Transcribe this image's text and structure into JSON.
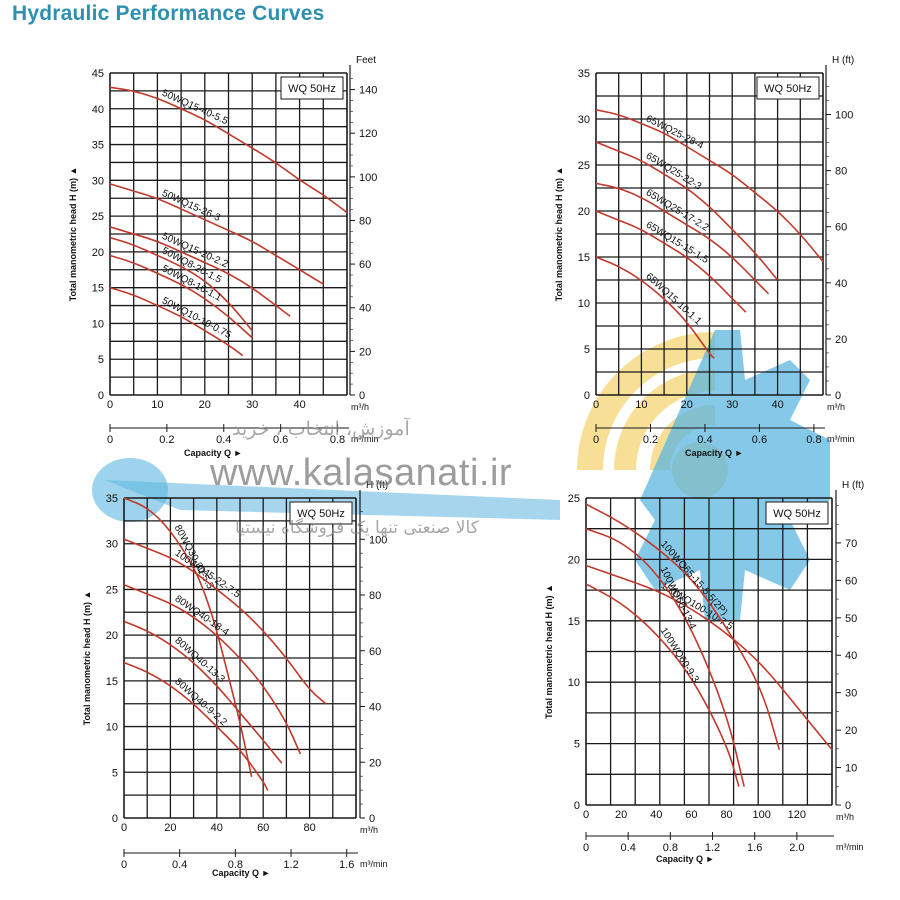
{
  "page_title": "Hydraulic Performance Curves",
  "watermark": {
    "line1": "آموزش، انتخاب ، خرید",
    "url": "www.kalasanati.ir",
    "line2": "کالا صنعتی تنها یک فروشگاه نیستیا",
    "colors": {
      "blue": "#5cb5e0",
      "yellow": "#f5d77a"
    }
  },
  "colors": {
    "curve": "#c0392b",
    "grid": "#1a1a1a",
    "title": "#2f8fb0"
  },
  "chart_data": [
    {
      "type": "line",
      "legend_box": "WQ 50Hz",
      "ylabel": "Total manometric head H (m)",
      "xlabel": "Capacity Q",
      "x_unit": "m³/h",
      "x2_unit": "m³/min",
      "y2_unit": "Feet",
      "xlim": [
        0,
        50
      ],
      "ylim": [
        0,
        45
      ],
      "x_ticks": [
        "0",
        "10",
        "20",
        "30",
        "40"
      ],
      "x_tick_values": [
        0,
        10,
        20,
        30,
        40
      ],
      "x2_ticks": [
        "0",
        "0.2",
        "0.4",
        "0.6",
        "0.8"
      ],
      "x2_tick_values": [
        0,
        0.2,
        0.4,
        0.6,
        0.8
      ],
      "y_ticks": [
        "0",
        "5",
        "10",
        "15",
        "20",
        "25",
        "30",
        "35",
        "40",
        "45"
      ],
      "y_tick_values": [
        0,
        5,
        10,
        15,
        20,
        25,
        30,
        35,
        40,
        45
      ],
      "y2_ticks": [
        "0",
        "20",
        "40",
        "60",
        "80",
        "100",
        "120",
        "140"
      ],
      "y2_tick_values": [
        0,
        20,
        40,
        60,
        80,
        100,
        120,
        140
      ],
      "series": [
        {
          "name": "50WQ15-40-5.5",
          "x": [
            0,
            5,
            10,
            15,
            20,
            25,
            30,
            35,
            40,
            45,
            50
          ],
          "y": [
            43,
            42.5,
            41.5,
            40,
            38.5,
            36.5,
            34.5,
            32.5,
            30,
            28,
            25.5
          ]
        },
        {
          "name": "50WQ15-26-3",
          "x": [
            0,
            5,
            10,
            15,
            20,
            25,
            30,
            35,
            40,
            45
          ],
          "y": [
            29.5,
            28.5,
            27.5,
            26,
            24.5,
            23,
            21.5,
            19.5,
            17.5,
            15.5
          ]
        },
        {
          "name": "50WQ15-20-2.2",
          "x": [
            0,
            5,
            10,
            15,
            20,
            25,
            30,
            35,
            38
          ],
          "y": [
            23.5,
            22.5,
            21.5,
            20,
            18.5,
            17,
            15,
            12.5,
            11
          ]
        },
        {
          "name": "50WQ8-20-1.5",
          "x": [
            0,
            5,
            10,
            15,
            20,
            25,
            30
          ],
          "y": [
            22,
            21,
            19.5,
            18,
            16,
            13,
            9
          ]
        },
        {
          "name": "50WQ8-16-1.1",
          "x": [
            0,
            5,
            10,
            15,
            20,
            25,
            30
          ],
          "y": [
            19.5,
            18.5,
            17,
            15.5,
            13.5,
            11,
            8
          ]
        },
        {
          "name": "50WQ10-10-0.75",
          "x": [
            0,
            5,
            10,
            15,
            20,
            25,
            28
          ],
          "y": [
            15,
            14,
            12.5,
            11,
            9,
            7,
            5.5
          ]
        }
      ]
    },
    {
      "type": "line",
      "legend_box": "WQ 50Hz",
      "ylabel": "Total manometric head H (m)",
      "xlabel": "Capacity Q",
      "x_unit": "m³/h",
      "x2_unit": "m³/min",
      "y2_unit": "H (ft)",
      "xlim": [
        0,
        50
      ],
      "ylim": [
        0,
        35
      ],
      "x_ticks": [
        "0",
        "10",
        "20",
        "30",
        "40"
      ],
      "x_tick_values": [
        0,
        10,
        20,
        30,
        40
      ],
      "x2_ticks": [
        "0",
        "0.2",
        "0.4",
        "0.6",
        "0.8"
      ],
      "x2_tick_values": [
        0,
        0.2,
        0.4,
        0.6,
        0.8
      ],
      "y_ticks": [
        "0",
        "5",
        "10",
        "15",
        "20",
        "25",
        "30",
        "35"
      ],
      "y_tick_values": [
        0,
        5,
        10,
        15,
        20,
        25,
        30,
        35
      ],
      "y2_ticks": [
        "0",
        "20",
        "40",
        "60",
        "80",
        "100"
      ],
      "y2_tick_values": [
        0,
        20,
        40,
        60,
        80,
        100
      ],
      "series": [
        {
          "name": "65WQ25-28-4",
          "x": [
            0,
            5,
            10,
            15,
            20,
            25,
            30,
            35,
            40,
            45,
            50
          ],
          "y": [
            31,
            30.5,
            29.5,
            28.5,
            27,
            25.5,
            24,
            22,
            20,
            17.5,
            14.5
          ]
        },
        {
          "name": "65WQ25-22-3",
          "x": [
            0,
            5,
            10,
            15,
            20,
            25,
            30,
            35,
            40
          ],
          "y": [
            27.5,
            26.5,
            25.5,
            24,
            22.5,
            20.5,
            18,
            15.5,
            12.5
          ]
        },
        {
          "name": "65WQ25-17-2.2",
          "x": [
            0,
            5,
            10,
            15,
            20,
            25,
            30,
            35,
            38
          ],
          "y": [
            23,
            22.5,
            21.5,
            20,
            18.5,
            17,
            15,
            12.5,
            11
          ]
        },
        {
          "name": "65WQ15-15-1.5",
          "x": [
            0,
            5,
            10,
            15,
            20,
            25,
            30,
            33
          ],
          "y": [
            20,
            19,
            18,
            16.5,
            15,
            13,
            10.5,
            9
          ]
        },
        {
          "name": "65WQ15-10-1.1",
          "x": [
            0,
            5,
            10,
            15,
            20,
            25,
            26
          ],
          "y": [
            15,
            14,
            12.5,
            10.5,
            8,
            4.5,
            4
          ]
        }
      ]
    },
    {
      "type": "line",
      "legend_box": "WQ 50Hz",
      "ylabel": "Total manometric head H (m)",
      "xlabel": "Capacity Q",
      "x_unit": "m³/h",
      "x2_unit": "m³/min",
      "y2_unit": "H (ft)",
      "xlim": [
        0,
        100
      ],
      "ylim": [
        0,
        35
      ],
      "x_ticks": [
        "0",
        "20",
        "40",
        "60",
        "80"
      ],
      "x_tick_values": [
        0,
        20,
        40,
        60,
        80
      ],
      "x2_ticks": [
        "0",
        "0.4",
        "0.8",
        "1.2",
        "1.6"
      ],
      "x2_tick_values": [
        0,
        0.4,
        0.8,
        1.2,
        1.6
      ],
      "y_ticks": [
        "0",
        "5",
        "10",
        "15",
        "20",
        "25",
        "30",
        "35"
      ],
      "y_tick_values": [
        0,
        5,
        10,
        15,
        20,
        25,
        30,
        35
      ],
      "y2_ticks": [
        "0",
        "20",
        "40",
        "60",
        "80",
        "100"
      ],
      "y2_tick_values": [
        0,
        20,
        40,
        60,
        80,
        100
      ],
      "series": [
        {
          "name": "80WQ30-30-5.5",
          "x": [
            0,
            10,
            20,
            30,
            35,
            40,
            45,
            50,
            55
          ],
          "y": [
            35,
            34,
            31.5,
            27.5,
            24.5,
            20.5,
            15.5,
            10.5,
            4.5
          ]
        },
        {
          "name": "100WQ45-22-7.5",
          "x": [
            0,
            10,
            20,
            30,
            40,
            50,
            60,
            70,
            80,
            87
          ],
          "y": [
            30.5,
            29.5,
            28.5,
            27,
            25,
            23,
            20.5,
            17.5,
            14,
            12.5
          ]
        },
        {
          "name": "80WQ40-18-4",
          "x": [
            0,
            10,
            20,
            30,
            40,
            50,
            60,
            70,
            76
          ],
          "y": [
            25.5,
            24.5,
            23.5,
            22,
            20,
            17.5,
            14.5,
            10.5,
            7
          ]
        },
        {
          "name": "80WQ40-13-3",
          "x": [
            0,
            10,
            20,
            30,
            40,
            50,
            60,
            68
          ],
          "y": [
            21.5,
            20.5,
            19,
            17,
            14.5,
            11.5,
            8.5,
            6
          ]
        },
        {
          "name": "80WQ40-9-2.2",
          "x": [
            0,
            10,
            20,
            30,
            40,
            50,
            60,
            62
          ],
          "y": [
            17,
            16,
            14.5,
            12.5,
            10,
            7.5,
            4,
            3
          ]
        }
      ]
    },
    {
      "type": "line",
      "legend_box": "WQ 50Hz",
      "ylabel": "Total manometric head H (m)",
      "xlabel": "Capacity Q",
      "x_unit": "m³/h",
      "x2_unit": "m³/min",
      "y2_unit": "H (ft)",
      "xlim": [
        0,
        140
      ],
      "ylim": [
        0,
        25
      ],
      "x_ticks": [
        "0",
        "20",
        "40",
        "60",
        "80",
        "100",
        "120"
      ],
      "x_tick_values": [
        0,
        20,
        40,
        60,
        80,
        100,
        120
      ],
      "x2_ticks": [
        "0",
        "0.4",
        "0.8",
        "1.2",
        "1.6",
        "2.0"
      ],
      "x2_tick_values": [
        0,
        0.4,
        0.8,
        1.2,
        1.6,
        2.0
      ],
      "y_ticks": [
        "0",
        "5",
        "10",
        "15",
        "20",
        "25"
      ],
      "y_tick_values": [
        0,
        5,
        10,
        15,
        20,
        25
      ],
      "y2_ticks": [
        "0",
        "10",
        "20",
        "30",
        "40",
        "50",
        "60",
        "70"
      ],
      "y2_tick_values": [
        0,
        10,
        20,
        30,
        40,
        50,
        60,
        70
      ],
      "series": [
        {
          "name": "150WQ100-10-7.5",
          "x": [
            0,
            20,
            40,
            60,
            80,
            100,
            120,
            140
          ],
          "y": [
            19.5,
            18.5,
            17.5,
            16,
            14,
            11.5,
            8,
            4.5
          ]
        },
        {
          "name": "100WQ65-15-5.5(2P)",
          "x": [
            0,
            20,
            40,
            60,
            80,
            100,
            110
          ],
          "y": [
            24.5,
            23,
            21,
            18.5,
            14.5,
            9.5,
            4.5
          ]
        },
        {
          "name": "100WQ60-13-4",
          "x": [
            0,
            20,
            40,
            60,
            80,
            90
          ],
          "y": [
            22.5,
            21.5,
            19,
            14.5,
            7.5,
            1.5
          ]
        },
        {
          "name": "100WQ60-9-3",
          "x": [
            0,
            20,
            40,
            60,
            80,
            87
          ],
          "y": [
            18,
            16.5,
            14,
            10.5,
            5,
            1.5
          ]
        }
      ]
    }
  ]
}
